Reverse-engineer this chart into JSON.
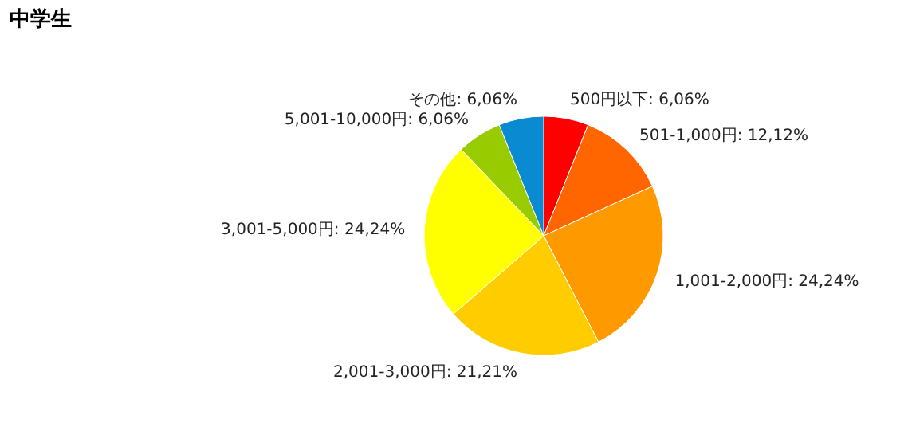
{
  "chart_data": {
    "type": "pie",
    "title": "中学生",
    "categories": [
      "500円以下",
      "501-1,000円",
      "1,001-2,000円",
      "2,001-3,000円",
      "3,001-5,000円",
      "5,001-10,000円",
      "その他"
    ],
    "values": [
      6.06,
      12.12,
      24.24,
      21.21,
      24.24,
      6.06,
      6.06
    ],
    "value_labels": [
      "6,06%",
      "12,12%",
      "24,24%",
      "21,21%",
      "24,24%",
      "6,06%",
      "6,06%"
    ],
    "colors": [
      "#ff0000",
      "#ff6600",
      "#ff9900",
      "#ffcc00",
      "#ffff00",
      "#99cc00",
      "#0a8ad0"
    ]
  }
}
